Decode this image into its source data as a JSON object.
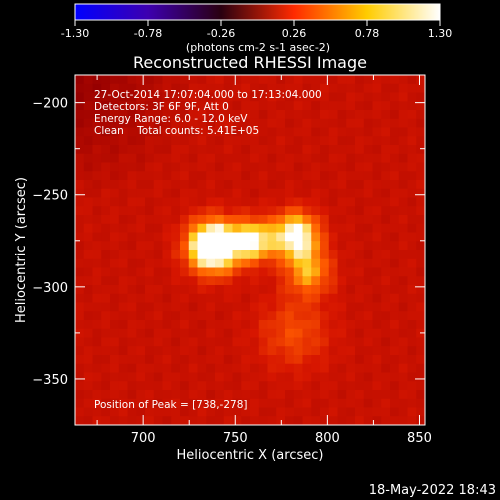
{
  "chart_data": {
    "type": "heatmap",
    "title": "Reconstructed RHESSI Image",
    "xlabel": "Heliocentric X (arcsec)",
    "ylabel": "Heliocentric Y (arcsec)",
    "xlim": [
      663,
      853
    ],
    "ylim": [
      -375,
      -185
    ],
    "x_ticks": [
      "700",
      "750",
      "800",
      "850"
    ],
    "y_ticks": [
      "-200",
      "-250",
      "-300",
      "-350"
    ],
    "colorbar": {
      "min": -1.3,
      "max": 1.3,
      "ticks": [
        "-1.30",
        "-0.78",
        "-0.26",
        "0.26",
        "0.78",
        "1.30"
      ],
      "unit": "(photons cm-2 s-1 asec-2)",
      "colors": [
        "#0000ff",
        "#3d00b0",
        "#2a0010",
        "#ff2a00",
        "#ffcc00",
        "#ffffff"
      ]
    },
    "annotations": {
      "time_range": "27-Oct-2014 17:07:04.000 to 17:13:04.000",
      "detectors": "Detectors: 3F 6F 9F, Att 0",
      "energy": "Energy Range: 6.0 - 12.0 keV",
      "method": "Clean    Total counts: 5.41E+05"
    },
    "peak_label": "Position of Peak = [738,-278]",
    "peak": [
      738,
      -278
    ],
    "sources": [
      {
        "x": 738,
        "y": -278,
        "sigma": 10,
        "amp": 1.3
      },
      {
        "x": 760,
        "y": -275,
        "sigma": 8,
        "amp": 0.8
      },
      {
        "x": 783,
        "y": -272,
        "sigma": 9,
        "amp": 0.95
      },
      {
        "x": 790,
        "y": -292,
        "sigma": 9,
        "amp": 0.55
      },
      {
        "x": 782,
        "y": -325,
        "sigma": 14,
        "amp": 0.32
      }
    ],
    "background_level": 0.42,
    "footer_date": "18-May-2022 18:43"
  }
}
